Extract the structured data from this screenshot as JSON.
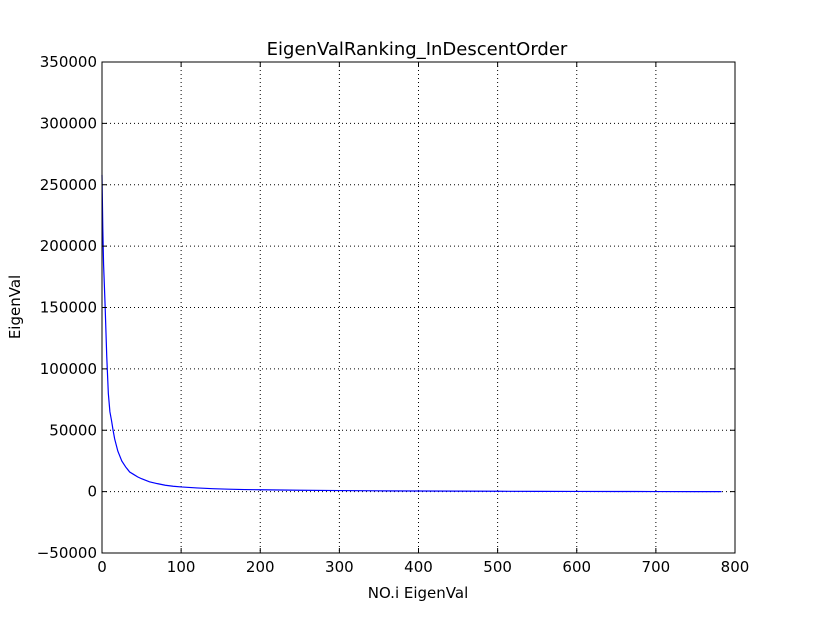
{
  "chart_data": {
    "type": "line",
    "title": "EigenValRanking_InDescentOrder",
    "xlabel": "NO.i EigenVal",
    "ylabel": "EigenVal",
    "xlim": [
      0,
      800
    ],
    "ylim": [
      -50000,
      350000
    ],
    "xticks": [
      0,
      100,
      200,
      300,
      400,
      500,
      600,
      700,
      800
    ],
    "yticks": [
      -50000,
      0,
      50000,
      100000,
      150000,
      200000,
      250000,
      300000,
      350000
    ],
    "xtick_labels": [
      "0",
      "100",
      "200",
      "300",
      "400",
      "500",
      "600",
      "700",
      "800"
    ],
    "ytick_labels": [
      "−50000",
      "0",
      "50000",
      "100000",
      "150000",
      "200000",
      "250000",
      "300000",
      "350000"
    ],
    "grid": true,
    "series": [
      {
        "color": "#0000ff",
        "x": [
          0,
          1,
          2,
          3,
          4,
          5,
          6,
          8,
          10,
          12,
          14,
          16,
          18,
          20,
          25,
          30,
          35,
          40,
          45,
          50,
          60,
          70,
          80,
          90,
          100,
          120,
          140,
          160,
          180,
          200,
          250,
          300,
          350,
          400,
          450,
          500,
          550,
          600,
          650,
          700,
          750,
          783
        ],
        "y": [
          258000,
          215000,
          185000,
          168000,
          150000,
          130000,
          110000,
          80000,
          65000,
          58000,
          50000,
          43000,
          38000,
          33000,
          25000,
          20000,
          16000,
          14000,
          12000,
          10500,
          8000,
          6500,
          5200,
          4400,
          3800,
          3000,
          2400,
          2000,
          1700,
          1500,
          1100,
          850,
          650,
          500,
          380,
          280,
          200,
          140,
          90,
          50,
          20,
          0
        ]
      }
    ]
  }
}
